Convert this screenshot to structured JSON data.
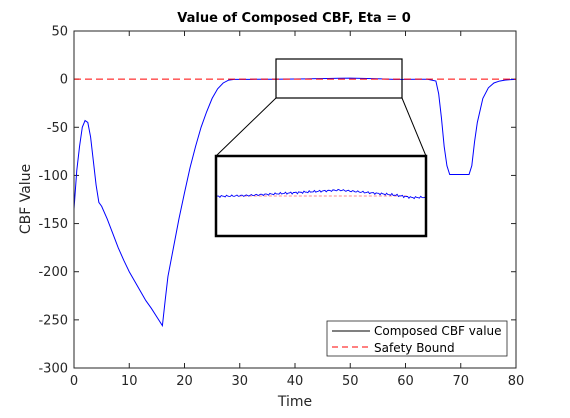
{
  "chart_data": {
    "type": "line",
    "title": "Value of Composed CBF, Eta = 0",
    "xlabel": "Time",
    "ylabel": "CBF Value",
    "xlim": [
      0,
      80
    ],
    "ylim": [
      -300,
      50
    ],
    "xticks": [
      0,
      10,
      20,
      30,
      40,
      50,
      60,
      70,
      80
    ],
    "yticks": [
      -300,
      -250,
      -200,
      -150,
      -100,
      -50,
      0,
      50
    ],
    "grid": false,
    "legend_position": "bottom-right",
    "series": [
      {
        "name": "Composed CBF value",
        "color": "#0000ff",
        "line_style": "solid",
        "x": [
          0,
          0.5,
          1,
          1.5,
          2,
          2.5,
          3,
          3.5,
          4,
          4.5,
          5,
          6,
          7,
          8,
          9,
          10,
          11,
          12,
          13,
          14,
          15,
          16,
          16.5,
          17,
          18,
          19,
          20,
          21,
          22,
          23,
          24,
          25,
          26,
          27,
          28,
          29,
          30,
          32,
          34,
          36,
          38,
          40,
          42,
          44,
          46,
          48,
          50,
          52,
          54,
          56,
          58,
          60,
          62,
          64,
          65.5,
          66,
          66.5,
          67,
          67.5,
          68,
          70,
          71.5,
          72,
          72.5,
          73,
          74,
          75,
          76,
          77,
          78,
          79,
          80
        ],
        "y": [
          -135,
          -95,
          -70,
          -50,
          -43,
          -45,
          -60,
          -85,
          -110,
          -128,
          -132,
          -145,
          -160,
          -175,
          -188,
          -200,
          -210,
          -220,
          -230,
          -238,
          -247,
          -256,
          -230,
          -205,
          -175,
          -145,
          -118,
          -92,
          -70,
          -50,
          -34,
          -20,
          -10,
          -4,
          -1,
          -0.3,
          -0.2,
          -0.2,
          -0.1,
          -0.1,
          0,
          0.1,
          0.3,
          0.5,
          0.7,
          0.9,
          1.1,
          0.8,
          0.5,
          0.2,
          -0.3,
          -0.2,
          -0.1,
          -0.1,
          -2,
          -15,
          -40,
          -70,
          -90,
          -99,
          -99,
          -99,
          -90,
          -65,
          -45,
          -20,
          -9,
          -4,
          -2,
          -1,
          -0.5,
          -0.3
        ]
      },
      {
        "name": "Safety Bound",
        "color": "#ff0000",
        "line_style": "dashed",
        "x": [
          0,
          80
        ],
        "y": [
          0,
          0
        ]
      }
    ],
    "inset": {
      "zoom_x_range": [
        36.5,
        59.5
      ],
      "zoom_y_range": [
        -20,
        20
      ]
    },
    "legend": [
      "Composed CBF value",
      "Safety Bound"
    ]
  }
}
